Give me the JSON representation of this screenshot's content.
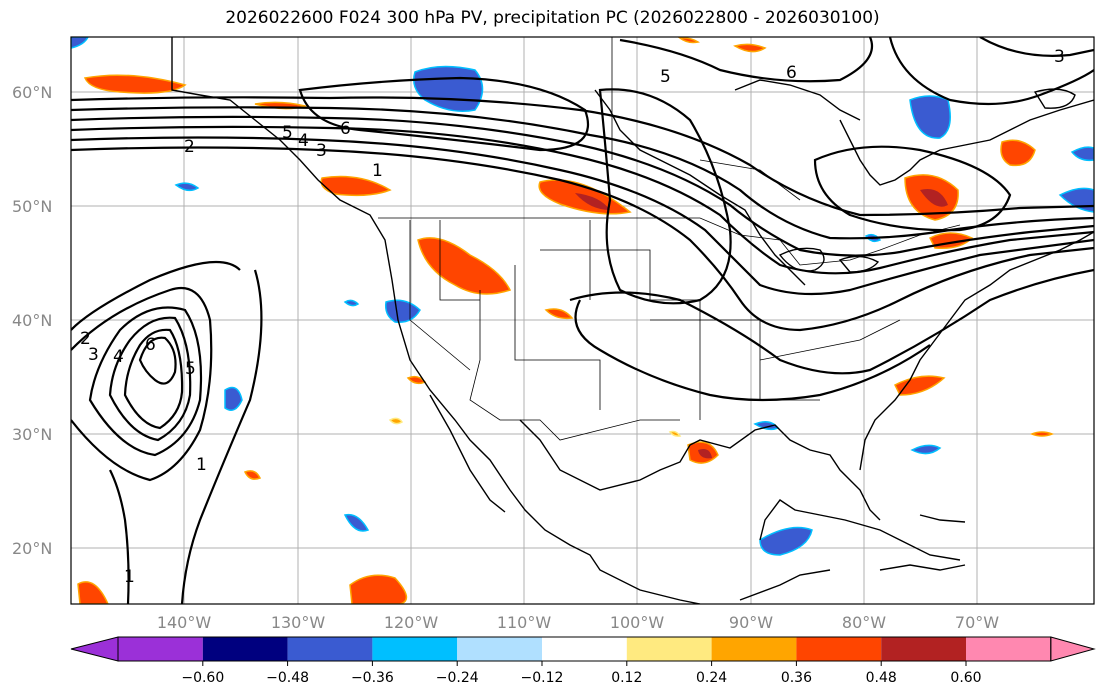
{
  "title": "2026022600 F024 300 hPa PV, precipitation PC (2026022800 - 2026030100)",
  "lat_labels": [
    "60°N",
    "50°N",
    "40°N",
    "30°N",
    "20°N"
  ],
  "lon_labels": [
    "140°W",
    "130°W",
    "120°W",
    "110°W",
    "100°W",
    "90°W",
    "80°W",
    "70°W"
  ],
  "colorbar": {
    "ticks": [
      "−0.60",
      "−0.48",
      "−0.36",
      "−0.24",
      "−0.12",
      "0.12",
      "0.24",
      "0.36",
      "0.48",
      "0.60"
    ],
    "colors": [
      "#9b30d8",
      "#00007f",
      "#3a5bd1",
      "#00bfff",
      "#b0e0ff",
      "#ffffff",
      "#ffea80",
      "#ffa500",
      "#ff4500",
      "#b22222",
      "#ff88b0",
      "#ff88b0"
    ]
  },
  "contour_labels": [
    "6",
    "5",
    "4",
    "3",
    "2",
    "1",
    "6",
    "5",
    "6",
    "5",
    "4",
    "3",
    "2",
    "1",
    "3",
    "1"
  ],
  "colors": {
    "positive_dark": "#b22222",
    "positive": "#ff4500",
    "positive_edge": "#ffa500",
    "negative": "#3a5bd1",
    "negative_edge": "#00bfff"
  }
}
